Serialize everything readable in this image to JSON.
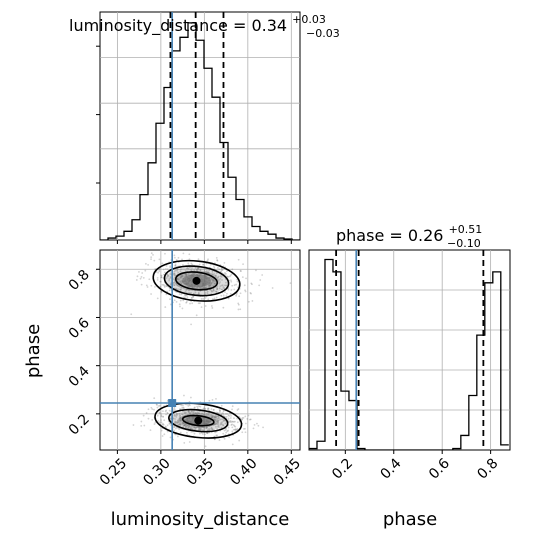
{
  "colors": {
    "truth": "#4682b4",
    "hist": "#000000",
    "contour": "#000000",
    "grid": "#b0b0b0",
    "scatter": "#808080"
  },
  "chart_data": {
    "type": "corner",
    "parameters": [
      "luminosity_distance",
      "phase"
    ],
    "titles": [
      {
        "base": "luminosity_distance = 0.34",
        "upper": "+0.03",
        "lower": "−0.03"
      },
      {
        "base": "phase = 0.26",
        "upper": "+0.51",
        "lower": "−0.10"
      }
    ],
    "axes": {
      "luminosity_distance": {
        "label": "luminosity_distance",
        "range": [
          0.23,
          0.46
        ],
        "ticks": [
          "0.25",
          "0.30",
          "0.35",
          "0.40",
          "0.45"
        ],
        "tick_values": [
          0.25,
          0.3,
          0.35,
          0.4,
          0.45
        ]
      },
      "phase": {
        "label": "phase",
        "range": [
          0.05,
          0.88
        ],
        "ticks": [
          "0.2",
          "0.4",
          "0.6",
          "0.8"
        ],
        "tick_values": [
          0.2,
          0.4,
          0.6,
          0.8
        ]
      }
    },
    "truths": {
      "luminosity_distance": 0.313,
      "phase": 0.245
    },
    "quantiles": {
      "luminosity_distance": [
        0.311,
        0.34,
        0.372
      ],
      "phase": [
        0.162,
        0.255,
        0.77
      ]
    },
    "hist_luminosity_distance": {
      "edges": [
        0.23,
        0.2392,
        0.2484,
        0.2576,
        0.2668,
        0.276,
        0.2852,
        0.2944,
        0.3036,
        0.3128,
        0.322,
        0.3312,
        0.3404,
        0.3496,
        0.3588,
        0.368,
        0.3772,
        0.3864,
        0.3956,
        0.4048,
        0.414,
        0.4232,
        0.4324,
        0.4416,
        0.4508,
        0.46
      ],
      "counts": [
        0,
        2,
        4,
        9,
        21,
        47,
        80,
        121,
        158,
        196,
        210,
        225,
        207,
        178,
        148,
        101,
        65,
        42,
        24,
        14,
        9,
        6,
        2,
        1,
        0
      ]
    },
    "hist_phase": {
      "edges": [
        0.05,
        0.083,
        0.116,
        0.149,
        0.182,
        0.215,
        0.248,
        0.281,
        0.314,
        0.347,
        0.38,
        0.413,
        0.446,
        0.479,
        0.512,
        0.545,
        0.578,
        0.611,
        0.644,
        0.677,
        0.71,
        0.743,
        0.776,
        0.809,
        0.842,
        0.875
      ],
      "counts": [
        2,
        12,
        262,
        245,
        81,
        68,
        2,
        0,
        0,
        0,
        0,
        0,
        0,
        0,
        0,
        0,
        0,
        0,
        2,
        20,
        75,
        158,
        230,
        245,
        7
      ]
    },
    "contours": [
      {
        "center": [
          0.341,
          0.752
        ],
        "radii": [
          [
            0.024,
            0.036
          ],
          [
            0.037,
            0.06
          ],
          [
            0.05,
            0.082
          ]
        ]
      },
      {
        "center": [
          0.343,
          0.172
        ],
        "radii": [
          [
            0.018,
            0.02
          ],
          [
            0.034,
            0.044
          ],
          [
            0.05,
            0.07
          ]
        ]
      }
    ]
  }
}
